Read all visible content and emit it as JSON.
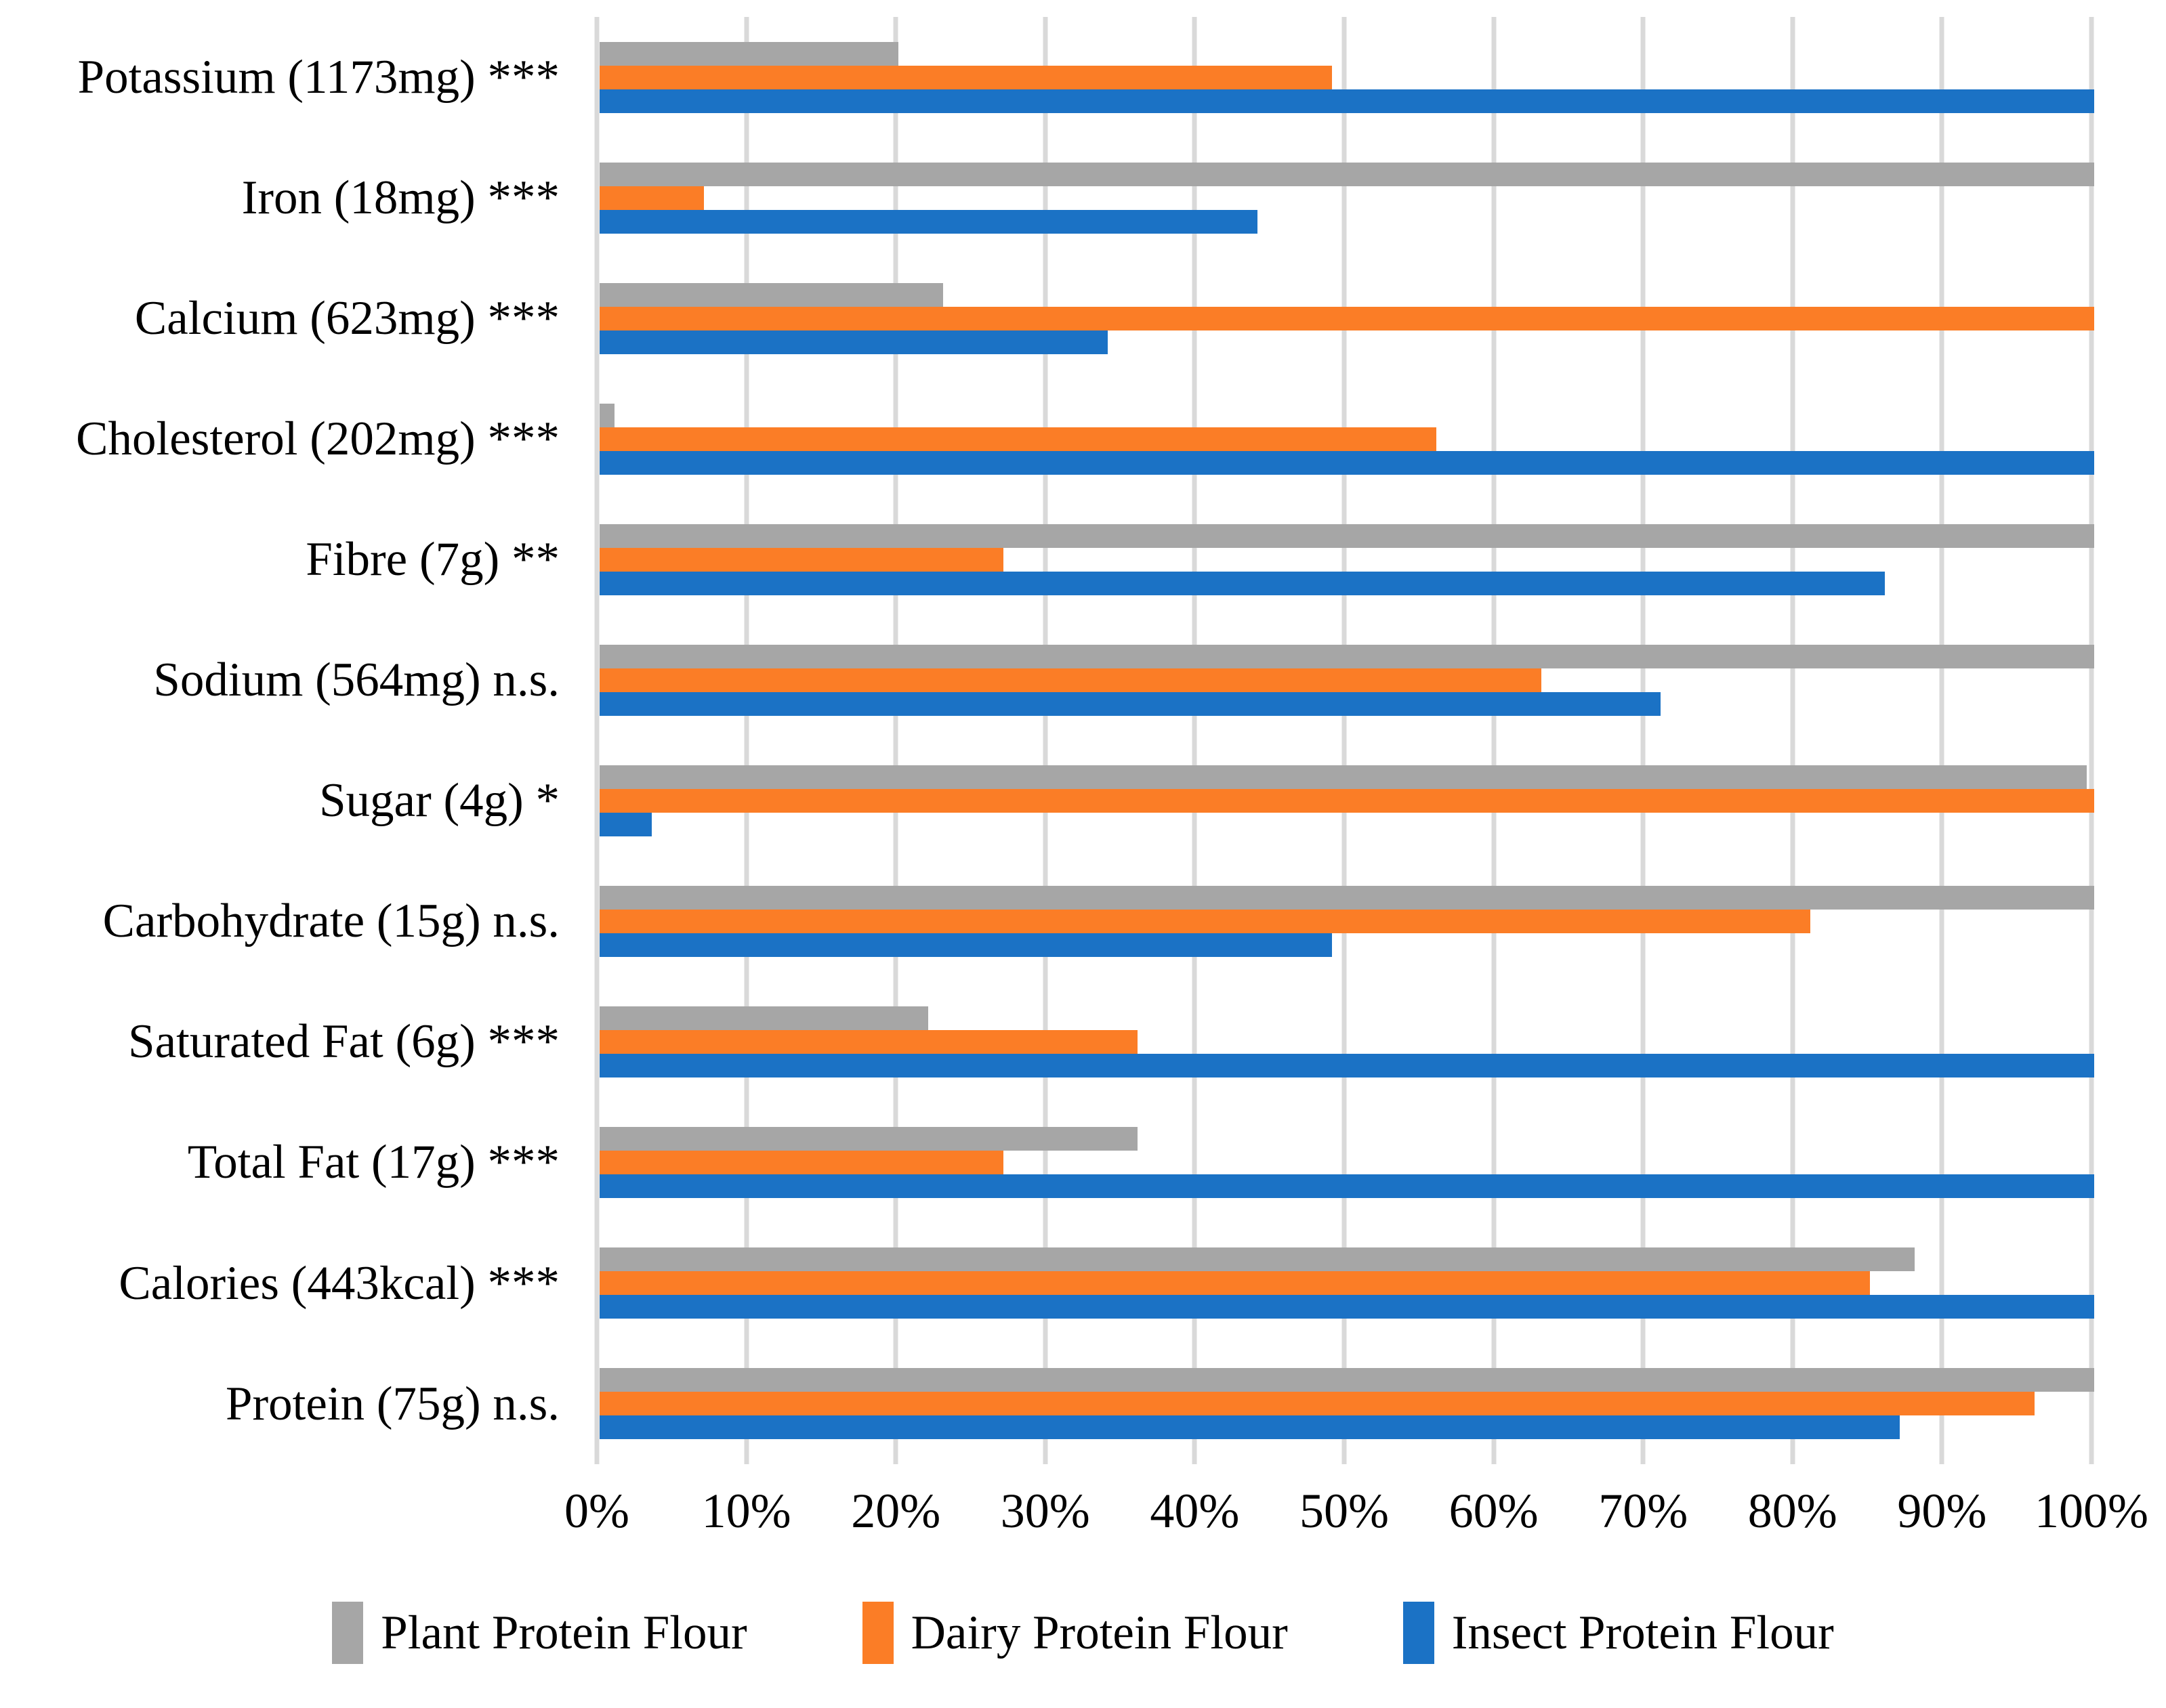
{
  "chart_data": {
    "type": "bar",
    "orientation": "horizontal",
    "title": "",
    "xlabel": "",
    "ylabel": "",
    "xlim": [
      0,
      100
    ],
    "grid": true,
    "gridline_color": "#D9D9D9",
    "background_color": "#FFFFFF",
    "legend_position": "bottom",
    "x_ticks": [
      "0%",
      "10%",
      "20%",
      "30%",
      "40%",
      "50%",
      "60%",
      "70%",
      "80%",
      "90%",
      "100%"
    ],
    "categories": [
      "Potassium (1173mg) ***",
      "Iron (18mg) ***",
      "Calcium (623mg) ***",
      "Cholesterol (202mg) ***",
      "Fibre (7g) **",
      "Sodium (564mg) n.s.",
      "Sugar (4g) *",
      "Carbohydrate (15g) n.s.",
      "Saturated Fat (6g) ***",
      "Total Fat (17g) ***",
      "Calories (443kcal) ***",
      "Protein (75g) n.s."
    ],
    "series": [
      {
        "name": "Plant Protein Flour",
        "color": "#A6A6A6",
        "values": [
          20,
          100,
          23,
          1,
          100,
          100,
          99.5,
          100,
          22,
          36,
          88,
          100
        ]
      },
      {
        "name": "Dairy Protein Flour",
        "color": "#FB7D26",
        "values": [
          49,
          7,
          100,
          56,
          27,
          63,
          100,
          81,
          36,
          27,
          85,
          96
        ]
      },
      {
        "name": "Insect Protein Flour",
        "color": "#1B72C5",
        "values": [
          100,
          44,
          34,
          100,
          86,
          71,
          3.5,
          49,
          100,
          100,
          100,
          87
        ]
      }
    ]
  }
}
